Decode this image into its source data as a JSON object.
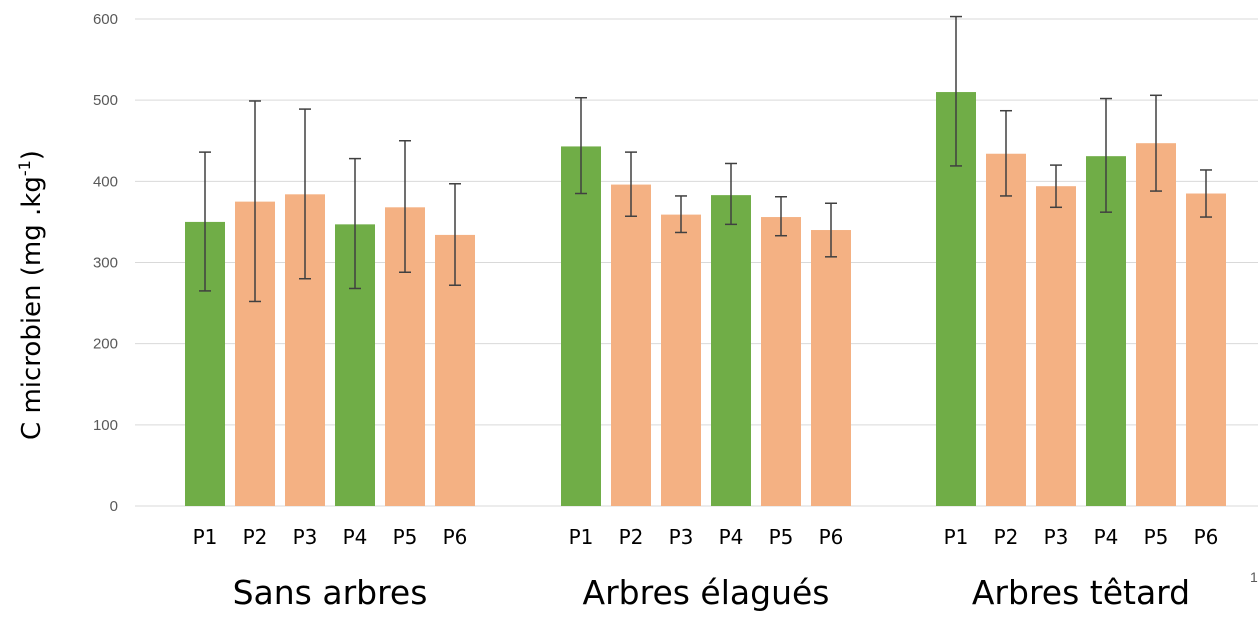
{
  "chart_data": {
    "type": "bar",
    "ylabel_main": "C microbien (mg .kg",
    "ylabel_sup": "-1",
    "ylabel_end": ")",
    "ylim": [
      0,
      600
    ],
    "yticks": [
      0,
      100,
      200,
      300,
      400,
      500,
      600
    ],
    "grid": true,
    "legend": "none",
    "colors": {
      "green": "#70AD47",
      "orange": "#F4B183",
      "error": "#404040",
      "grid": "#D9D9D9"
    },
    "groups": [
      {
        "label": "Sans arbres",
        "bars": [
          {
            "label": "P1",
            "value": 350,
            "err_low": 265,
            "err_high": 436,
            "color": "green"
          },
          {
            "label": "P2",
            "value": 375,
            "err_low": 252,
            "err_high": 499,
            "color": "orange"
          },
          {
            "label": "P3",
            "value": 384,
            "err_low": 280,
            "err_high": 489,
            "color": "orange"
          },
          {
            "label": "P4",
            "value": 347,
            "err_low": 268,
            "err_high": 428,
            "color": "green"
          },
          {
            "label": "P5",
            "value": 368,
            "err_low": 288,
            "err_high": 450,
            "color": "orange"
          },
          {
            "label": "P6",
            "value": 334,
            "err_low": 272,
            "err_high": 397,
            "color": "orange"
          }
        ]
      },
      {
        "label": "Arbres élagués",
        "bars": [
          {
            "label": "P1",
            "value": 443,
            "err_low": 385,
            "err_high": 503,
            "color": "green"
          },
          {
            "label": "P2",
            "value": 396,
            "err_low": 357,
            "err_high": 436,
            "color": "orange"
          },
          {
            "label": "P3",
            "value": 359,
            "err_low": 337,
            "err_high": 382,
            "color": "orange"
          },
          {
            "label": "P4",
            "value": 383,
            "err_low": 347,
            "err_high": 422,
            "color": "green"
          },
          {
            "label": "P5",
            "value": 356,
            "err_low": 333,
            "err_high": 381,
            "color": "orange"
          },
          {
            "label": "P6",
            "value": 340,
            "err_low": 307,
            "err_high": 373,
            "color": "orange"
          }
        ]
      },
      {
        "label": "Arbres têtard",
        "bars": [
          {
            "label": "P1",
            "value": 510,
            "err_low": 419,
            "err_high": 603,
            "color": "green"
          },
          {
            "label": "P2",
            "value": 434,
            "err_low": 382,
            "err_high": 487,
            "color": "orange"
          },
          {
            "label": "P3",
            "value": 394,
            "err_low": 368,
            "err_high": 420,
            "color": "orange"
          },
          {
            "label": "P4",
            "value": 431,
            "err_low": 362,
            "err_high": 502,
            "color": "green"
          },
          {
            "label": "P5",
            "value": 447,
            "err_low": 388,
            "err_high": 506,
            "color": "orange"
          },
          {
            "label": "P6",
            "value": 385,
            "err_low": 356,
            "err_high": 414,
            "color": "orange"
          }
        ]
      }
    ]
  },
  "page_number": "1"
}
